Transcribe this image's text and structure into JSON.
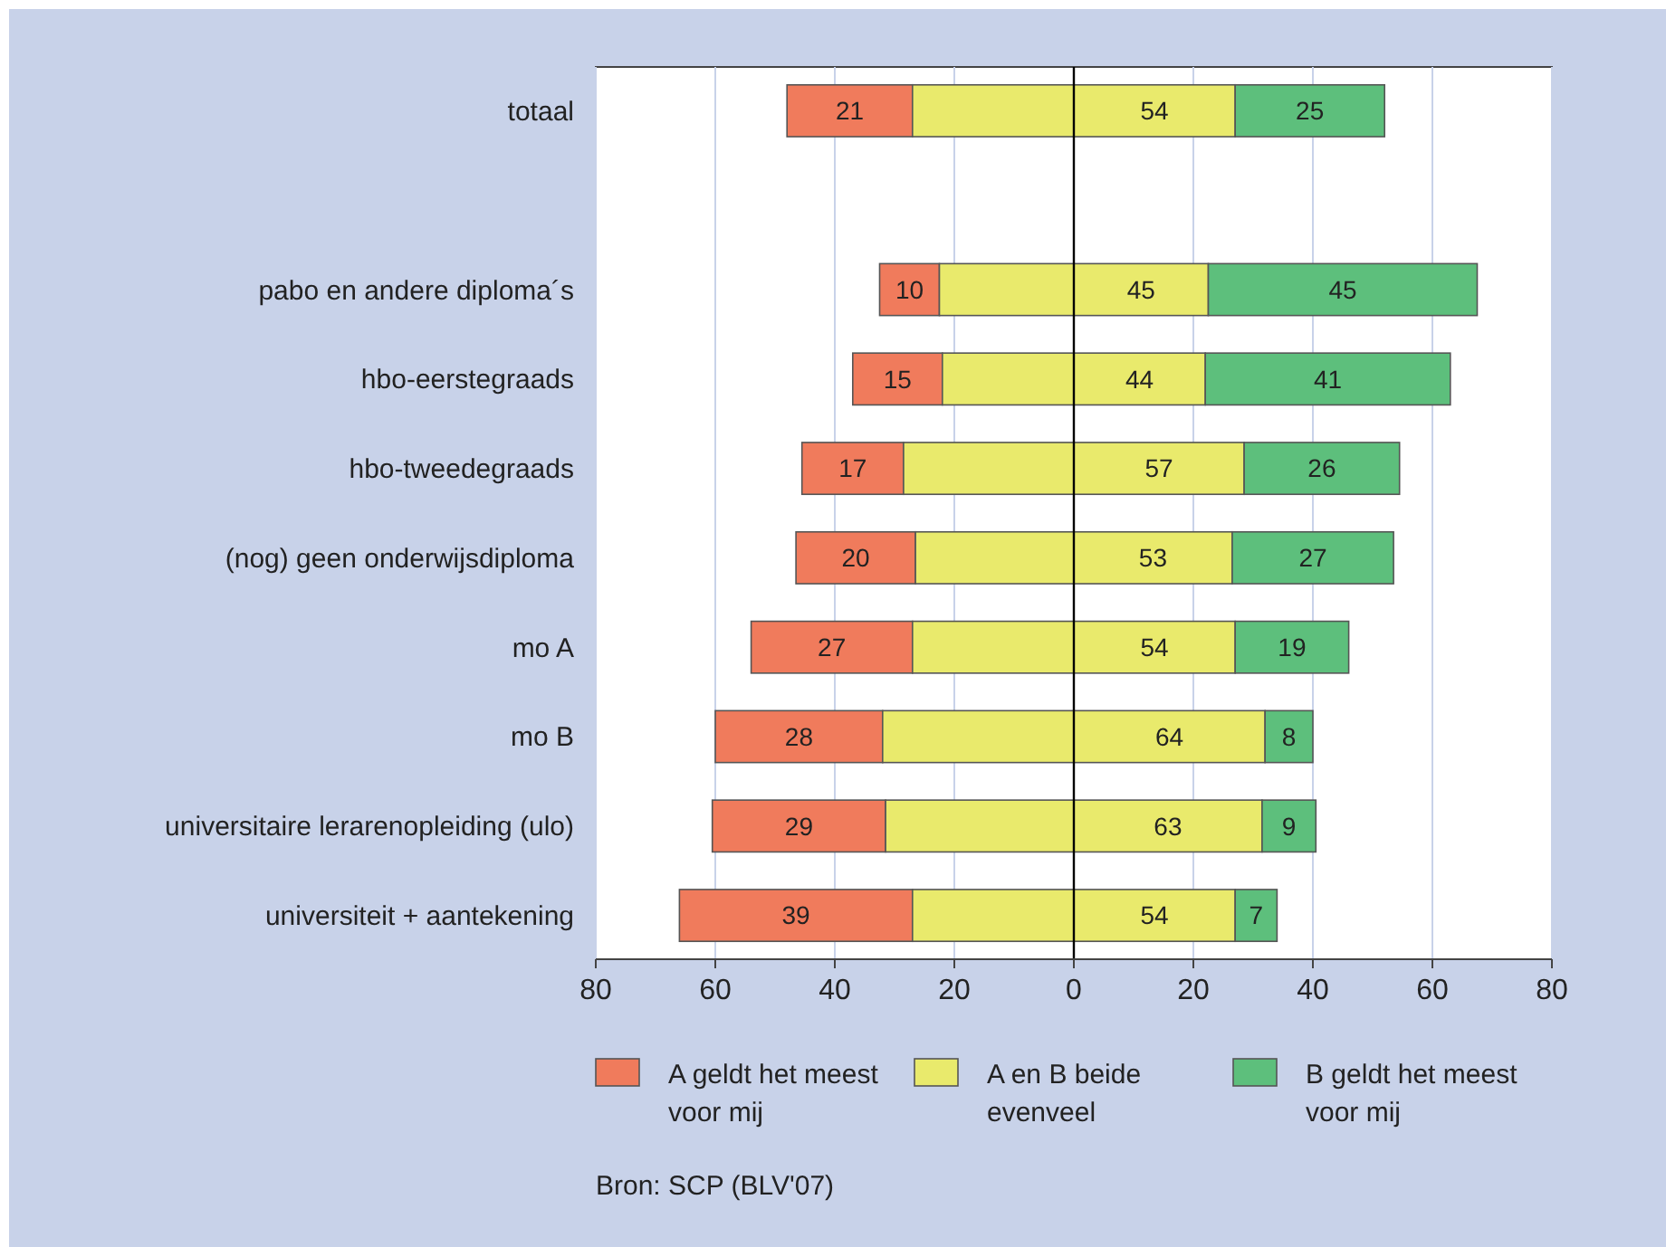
{
  "chart_data": {
    "type": "bar",
    "orientation": "horizontal",
    "categories": [
      "totaal",
      null,
      "pabo en andere diploma´s",
      "hbo-eerstegraads",
      "hbo-tweedegraads",
      "(nog) geen onderwijsdiploma",
      "mo A",
      "mo B",
      "universitaire lerarenopleiding (ulo)",
      "universiteit + aantekening"
    ],
    "series": [
      {
        "name": "A geldt het meest voor mij",
        "color": "#f07b5c",
        "values": [
          21,
          null,
          10,
          15,
          17,
          20,
          27,
          28,
          29,
          39
        ],
        "base": [
          -48,
          null,
          -32.5,
          -37,
          -45.5,
          -46.5,
          -54,
          -60,
          -60.5,
          -66
        ]
      },
      {
        "name": "A en B beide evenveel",
        "color": "#e9ea6c",
        "values": [
          54,
          null,
          45,
          44,
          57,
          53,
          54,
          64,
          63,
          54
        ],
        "base": [
          -27,
          null,
          -22.5,
          -22,
          -28.5,
          -26.5,
          -27,
          -32,
          -31.5,
          -27
        ]
      },
      {
        "name": "B geldt het meest voor mij",
        "color": "#5dbf7c",
        "values": [
          25,
          null,
          45,
          41,
          26,
          27,
          19,
          8,
          9,
          7
        ],
        "base": [
          27,
          null,
          22.5,
          22,
          28.5,
          26.5,
          27,
          32,
          31.5,
          27
        ]
      }
    ],
    "data_labels": true,
    "xlim": [
      -80,
      80
    ],
    "xticks": [
      {
        "value": -80,
        "label": "80"
      },
      {
        "value": -60,
        "label": "60"
      },
      {
        "value": -40,
        "label": "40"
      },
      {
        "value": -20,
        "label": "20"
      },
      0,
      20,
      40,
      60,
      80
    ],
    "grid": "x",
    "ref_lines": [
      {
        "axis": "x",
        "value": 0,
        "color": "#000000"
      }
    ],
    "legend": "bottom",
    "annotations": [
      "Bron: SCP (BLV'07)"
    ]
  }
}
